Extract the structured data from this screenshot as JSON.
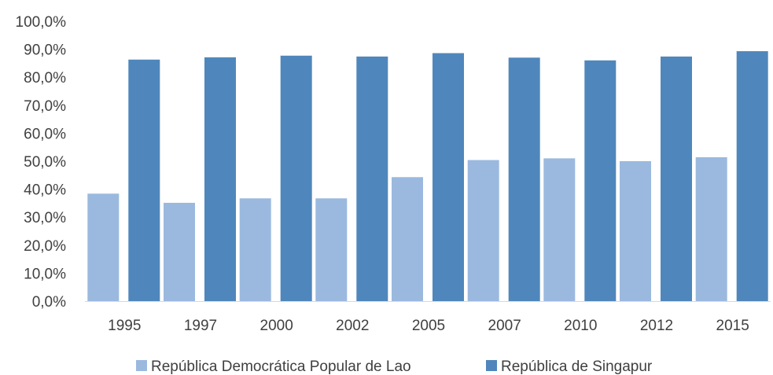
{
  "chart_data": {
    "type": "bar",
    "title": "",
    "xlabel": "",
    "ylabel": "",
    "categories": [
      "1995",
      "1997",
      "2000",
      "2002",
      "2005",
      "2007",
      "2010",
      "2012",
      "2015"
    ],
    "series": [
      {
        "name": "República Democrática Popular de Lao",
        "color": "#9bb9df",
        "values": [
          38.4,
          35.1,
          36.7,
          36.7,
          44.3,
          50.4,
          51.0,
          50.0,
          51.4
        ]
      },
      {
        "name": "República de Singapur",
        "color": "#4f87bc",
        "values": [
          86.3,
          87.1,
          87.7,
          87.4,
          88.6,
          87.0,
          86.0,
          87.4,
          89.3
        ]
      }
    ],
    "ylim": [
      0,
      100
    ],
    "yticks": [
      "0,0%",
      "10,0%",
      "20,0%",
      "30,0%",
      "40,0%",
      "50,0%",
      "60,0%",
      "70,0%",
      "80,0%",
      "90,0%",
      "100,0%"
    ],
    "grid": false,
    "legend_position": "bottom"
  }
}
